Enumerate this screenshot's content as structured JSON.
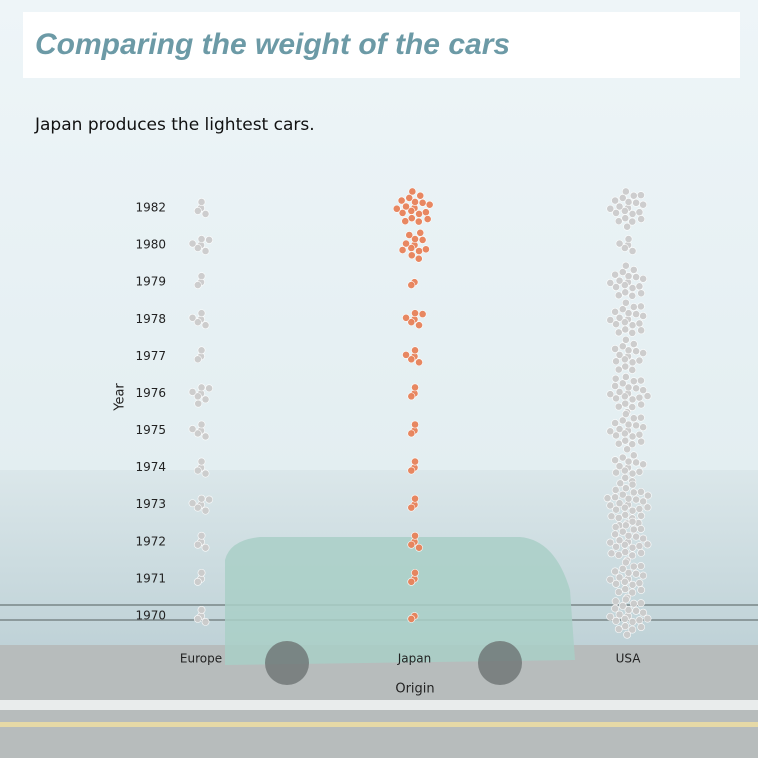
{
  "chart_data": {
    "type": "dot-cluster",
    "title": "Comparing the weight of the cars",
    "subtitle": "Japan produces the lightest cars.",
    "x_label": "Origin",
    "y_label": "Year",
    "years": [
      "1982",
      "1980",
      "1979",
      "1978",
      "1977",
      "1976",
      "1975",
      "1974",
      "1973",
      "1972",
      "1971",
      "1970"
    ],
    "series": [
      {
        "name": "Europe",
        "color": "#cccccc",
        "values": [
          4,
          6,
          3,
          5,
          3,
          7,
          5,
          4,
          6,
          4,
          3,
          4
        ]
      },
      {
        "name": "Japan",
        "color": "#e8825a",
        "values": [
          18,
          12,
          2,
          6,
          5,
          3,
          3,
          3,
          3,
          4,
          3,
          2
        ]
      },
      {
        "name": "USA",
        "color": "#cccccc",
        "values": [
          20,
          5,
          18,
          19,
          16,
          22,
          20,
          14,
          29,
          24,
          20,
          22
        ]
      }
    ]
  }
}
